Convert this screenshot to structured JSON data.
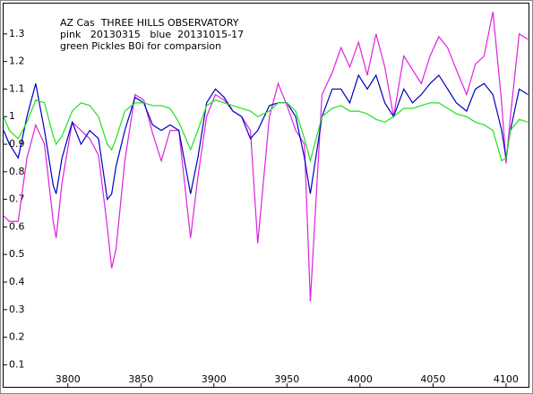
{
  "chart_data": {
    "type": "line",
    "title": "AZ Cas  THREE HILLS OBSERVATORY",
    "annotations": [
      "pink   20130315   blue  20131015-17",
      "green Pickles B0i for comparsion"
    ],
    "x": [
      3756,
      3760,
      3766,
      3772,
      3778,
      3784,
      3790,
      3792,
      3796,
      3803,
      3809,
      3815,
      3821,
      3827,
      3830,
      3833,
      3839,
      3846,
      3852,
      3858,
      3864,
      3870,
      3876,
      3884,
      3889,
      3895,
      3901,
      3907,
      3913,
      3919,
      3925,
      3930,
      3938,
      3944,
      3950,
      3956,
      3962,
      3966,
      3974,
      3981,
      3987,
      3993,
      3999,
      4005,
      4011,
      4017,
      4023,
      4030,
      4036,
      4042,
      4048,
      4054,
      4060,
      4066,
      4073,
      4079,
      4085,
      4091,
      4097,
      4100,
      4103,
      4109,
      4115
    ],
    "series": [
      {
        "name": "pink",
        "color": "#e020e0",
        "values": [
          0.64,
          0.62,
          0.62,
          0.85,
          0.97,
          0.9,
          0.62,
          0.56,
          0.76,
          0.98,
          0.95,
          0.92,
          0.86,
          0.6,
          0.45,
          0.52,
          0.84,
          1.08,
          1.06,
          0.94,
          0.84,
          0.95,
          0.95,
          0.56,
          0.78,
          1.0,
          1.08,
          1.06,
          1.02,
          1.0,
          0.95,
          0.54,
          1.0,
          1.12,
          1.04,
          0.95,
          0.9,
          0.33,
          1.08,
          1.16,
          1.25,
          1.18,
          1.27,
          1.15,
          1.3,
          1.18,
          1.0,
          1.22,
          1.17,
          1.12,
          1.22,
          1.29,
          1.25,
          1.17,
          1.08,
          1.19,
          1.22,
          1.38,
          1.05,
          0.83,
          1.0,
          1.3,
          1.28
        ]
      },
      {
        "name": "blue",
        "color": "#0000c0",
        "values": [
          0.95,
          0.9,
          0.85,
          1.0,
          1.12,
          0.95,
          0.75,
          0.72,
          0.85,
          0.98,
          0.9,
          0.95,
          0.92,
          0.7,
          0.72,
          0.82,
          0.95,
          1.07,
          1.05,
          0.97,
          0.95,
          0.97,
          0.95,
          0.72,
          0.85,
          1.05,
          1.1,
          1.07,
          1.02,
          1.0,
          0.92,
          0.95,
          1.04,
          1.05,
          1.05,
          1.0,
          0.85,
          0.72,
          1.0,
          1.1,
          1.1,
          1.05,
          1.15,
          1.1,
          1.15,
          1.05,
          1.0,
          1.1,
          1.05,
          1.08,
          1.12,
          1.15,
          1.1,
          1.05,
          1.02,
          1.1,
          1.12,
          1.08,
          0.95,
          0.85,
          0.95,
          1.1,
          1.08
        ]
      },
      {
        "name": "green",
        "color": "#20e020",
        "values": [
          1.0,
          0.95,
          0.92,
          0.98,
          1.06,
          1.05,
          0.93,
          0.9,
          0.93,
          1.02,
          1.05,
          1.04,
          1.0,
          0.9,
          0.88,
          0.92,
          1.02,
          1.05,
          1.05,
          1.04,
          1.04,
          1.03,
          0.98,
          0.88,
          0.95,
          1.04,
          1.06,
          1.05,
          1.04,
          1.03,
          1.02,
          1.0,
          1.02,
          1.05,
          1.05,
          1.02,
          0.92,
          0.84,
          1.0,
          1.03,
          1.04,
          1.02,
          1.02,
          1.01,
          0.99,
          0.98,
          1.0,
          1.03,
          1.03,
          1.04,
          1.05,
          1.05,
          1.03,
          1.01,
          1.0,
          0.98,
          0.97,
          0.95,
          0.84,
          0.85,
          0.95,
          0.99,
          0.98
        ]
      }
    ],
    "xlim": [
      3756,
      4116
    ],
    "ylim": [
      0.02,
      1.41
    ],
    "xticks": [
      3800,
      3850,
      3900,
      3950,
      4000,
      4050,
      4100
    ],
    "yticks": [
      0.1,
      0.2,
      0.3,
      0.4,
      0.5,
      0.6,
      0.7,
      0.8,
      0.9,
      1,
      1.1,
      1.2,
      1.3
    ]
  }
}
